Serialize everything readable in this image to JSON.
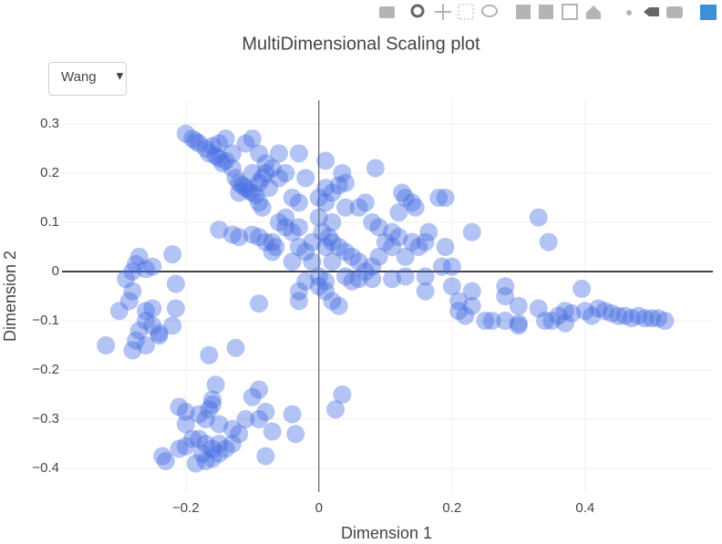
{
  "chart_data": {
    "type": "scatter",
    "title": "MultiDimensional Scaling plot",
    "x_label": "Dimension 1",
    "y_label": "Dimension 2",
    "marker_color": "#4169e1",
    "opacity": 0.4,
    "grid": true,
    "zeroline": true,
    "xlim": [
      -0.386,
      0.592
    ],
    "ylim": [
      -0.448,
      0.348
    ],
    "xticks": [
      {
        "value": -0.2,
        "label": "−0.2"
      },
      0,
      0.2,
      0.4
    ],
    "yticks": [
      {
        "value": -0.4,
        "label": "−0.4"
      },
      {
        "value": -0.3,
        "label": "−0.3"
      },
      {
        "value": -0.2,
        "label": "−0.2"
      },
      {
        "value": -0.1,
        "label": "−0.1"
      },
      0,
      0.1,
      0.2,
      0.3
    ],
    "x": [
      -0.2,
      -0.19,
      -0.185,
      -0.18,
      -0.17,
      -0.165,
      -0.16,
      -0.155,
      -0.15,
      -0.15,
      -0.145,
      -0.14,
      -0.13,
      -0.125,
      -0.12,
      -0.115,
      -0.11,
      -0.105,
      -0.1,
      -0.095,
      -0.09,
      -0.085,
      -0.08,
      -0.09,
      -0.085,
      -0.075,
      -0.07,
      -0.06,
      -0.05,
      -0.11,
      -0.1,
      -0.09,
      -0.08,
      -0.06,
      -0.03,
      -0.04,
      -0.03,
      -0.02,
      -0.05,
      -0.06,
      -0.03,
      -0.13,
      -0.14,
      -0.1,
      -0.12,
      0.01,
      0.03,
      0.035,
      0.04,
      0.01,
      0.02,
      0.0,
      0.01,
      0.04,
      0.06,
      0.07,
      0.08,
      0.09,
      0.11,
      0.12,
      0.125,
      0.13,
      0.14,
      0.145,
      0.165,
      0.18,
      0.19,
      0.085,
      0.0,
      0.005,
      0.015,
      0.02,
      0.03,
      0.04,
      0.05,
      0.06,
      0.07,
      0.08,
      0.09,
      0.1,
      0.12,
      0.14,
      0.15,
      0.16,
      0.13,
      0.11,
      0.02,
      0.01,
      -0.01,
      0.0,
      0.02,
      -0.15,
      -0.13,
      -0.12,
      -0.1,
      -0.09,
      -0.08,
      -0.07,
      -0.065,
      -0.07,
      -0.05,
      -0.04,
      -0.03,
      -0.02,
      -0.01,
      -0.04,
      -0.03,
      -0.03,
      -0.02,
      0.0,
      0.01,
      0.02,
      0.03,
      0.04,
      0.05,
      0.06,
      0.08,
      -0.09,
      0.01,
      0.11,
      0.13,
      0.16,
      0.16,
      0.185,
      0.19,
      0.2,
      0.2,
      0.21,
      0.21,
      0.22,
      0.23,
      0.23,
      0.23,
      0.25,
      0.26,
      0.28,
      0.28,
      0.28,
      0.3,
      0.3,
      0.33,
      0.34,
      0.35,
      0.36,
      0.37,
      0.37,
      0.38,
      0.395,
      0.4,
      0.41,
      0.42,
      0.43,
      0.44,
      0.45,
      0.46,
      0.47,
      0.48,
      0.49,
      0.5,
      0.51,
      0.52,
      0.33,
      0.345,
      0.3,
      -0.27,
      -0.275,
      -0.28,
      -0.26,
      -0.25,
      -0.22,
      -0.215,
      -0.29,
      -0.28,
      -0.285,
      -0.3,
      -0.26,
      -0.25,
      -0.215,
      -0.26,
      -0.27,
      -0.25,
      -0.24,
      -0.26,
      -0.275,
      -0.28,
      -0.24,
      -0.22,
      -0.32,
      -0.165,
      -0.125,
      -0.155,
      -0.09,
      -0.1,
      -0.16,
      -0.16,
      -0.165,
      -0.21,
      -0.2,
      -0.18,
      -0.17,
      -0.15,
      -0.13,
      -0.12,
      -0.11,
      -0.09,
      -0.08,
      -0.04,
      -0.07,
      -0.035,
      -0.2,
      -0.19,
      -0.2,
      -0.21,
      -0.18,
      -0.17,
      -0.16,
      -0.15,
      -0.14,
      -0.13,
      -0.175,
      -0.17,
      -0.16,
      -0.15,
      -0.185,
      -0.235,
      -0.23,
      -0.08,
      0.035,
      0.025
    ],
    "y": [
      0.28,
      0.27,
      0.265,
      0.26,
      0.25,
      0.24,
      0.255,
      0.235,
      0.23,
      0.26,
      0.22,
      0.225,
      0.21,
      0.19,
      0.18,
      0.175,
      0.17,
      0.165,
      0.16,
      0.155,
      0.18,
      0.19,
      0.2,
      0.14,
      0.13,
      0.17,
      0.21,
      0.19,
      0.2,
      0.26,
      0.27,
      0.24,
      0.22,
      0.24,
      0.24,
      0.15,
      0.14,
      0.19,
      0.11,
      0.1,
      0.09,
      0.24,
      0.27,
      0.2,
      0.16,
      0.225,
      0.175,
      0.2,
      0.18,
      0.17,
      0.16,
      0.15,
      0.14,
      0.13,
      0.13,
      0.14,
      0.1,
      0.09,
      0.08,
      0.12,
      0.16,
      0.15,
      0.14,
      0.13,
      0.08,
      0.15,
      0.15,
      0.21,
      0.11,
      0.08,
      0.07,
      0.06,
      0.05,
      0.04,
      0.03,
      0.02,
      0.0,
      0.01,
      0.03,
      0.06,
      0.07,
      0.06,
      0.05,
      0.06,
      0.03,
      0.05,
      0.1,
      0.05,
      0.02,
      -0.01,
      0.02,
      0.085,
      0.075,
      0.07,
      0.075,
      0.07,
      0.06,
      0.06,
      0.05,
      0.04,
      0.09,
      0.08,
      0.05,
      0.04,
      0.06,
      0.02,
      -0.06,
      -0.04,
      -0.02,
      -0.03,
      -0.04,
      -0.06,
      -0.07,
      -0.01,
      -0.02,
      -0.015,
      -0.015,
      -0.065,
      -0.02,
      -0.015,
      -0.01,
      -0.01,
      -0.04,
      0.01,
      0.05,
      0.01,
      -0.03,
      -0.06,
      -0.08,
      -0.09,
      -0.07,
      -0.04,
      0.08,
      -0.1,
      -0.1,
      -0.1,
      -0.05,
      -0.03,
      -0.105,
      -0.07,
      -0.075,
      -0.1,
      -0.1,
      -0.09,
      -0.105,
      -0.08,
      -0.085,
      -0.035,
      -0.08,
      -0.09,
      -0.075,
      -0.08,
      -0.085,
      -0.09,
      -0.09,
      -0.095,
      -0.09,
      -0.095,
      -0.095,
      -0.095,
      -0.1,
      0.11,
      0.06,
      -0.11,
      0.03,
      0.015,
      0.0,
      0.005,
      0.01,
      0.035,
      -0.025,
      -0.015,
      -0.04,
      -0.06,
      -0.08,
      -0.08,
      -0.075,
      -0.075,
      -0.1,
      -0.12,
      -0.11,
      -0.125,
      -0.15,
      -0.14,
      -0.16,
      -0.13,
      -0.11,
      -0.15,
      -0.17,
      -0.155,
      -0.23,
      -0.24,
      -0.255,
      -0.26,
      -0.27,
      -0.28,
      -0.275,
      -0.285,
      -0.29,
      -0.3,
      -0.31,
      -0.32,
      -0.33,
      -0.3,
      -0.3,
      -0.285,
      -0.29,
      -0.325,
      -0.33,
      -0.31,
      -0.34,
      -0.355,
      -0.36,
      -0.34,
      -0.35,
      -0.36,
      -0.35,
      -0.36,
      -0.35,
      -0.37,
      -0.385,
      -0.38,
      -0.37,
      -0.39,
      -0.375,
      -0.385,
      -0.375,
      -0.25,
      -0.28
    ]
  },
  "dropdown": {
    "selected": "Wang"
  }
}
